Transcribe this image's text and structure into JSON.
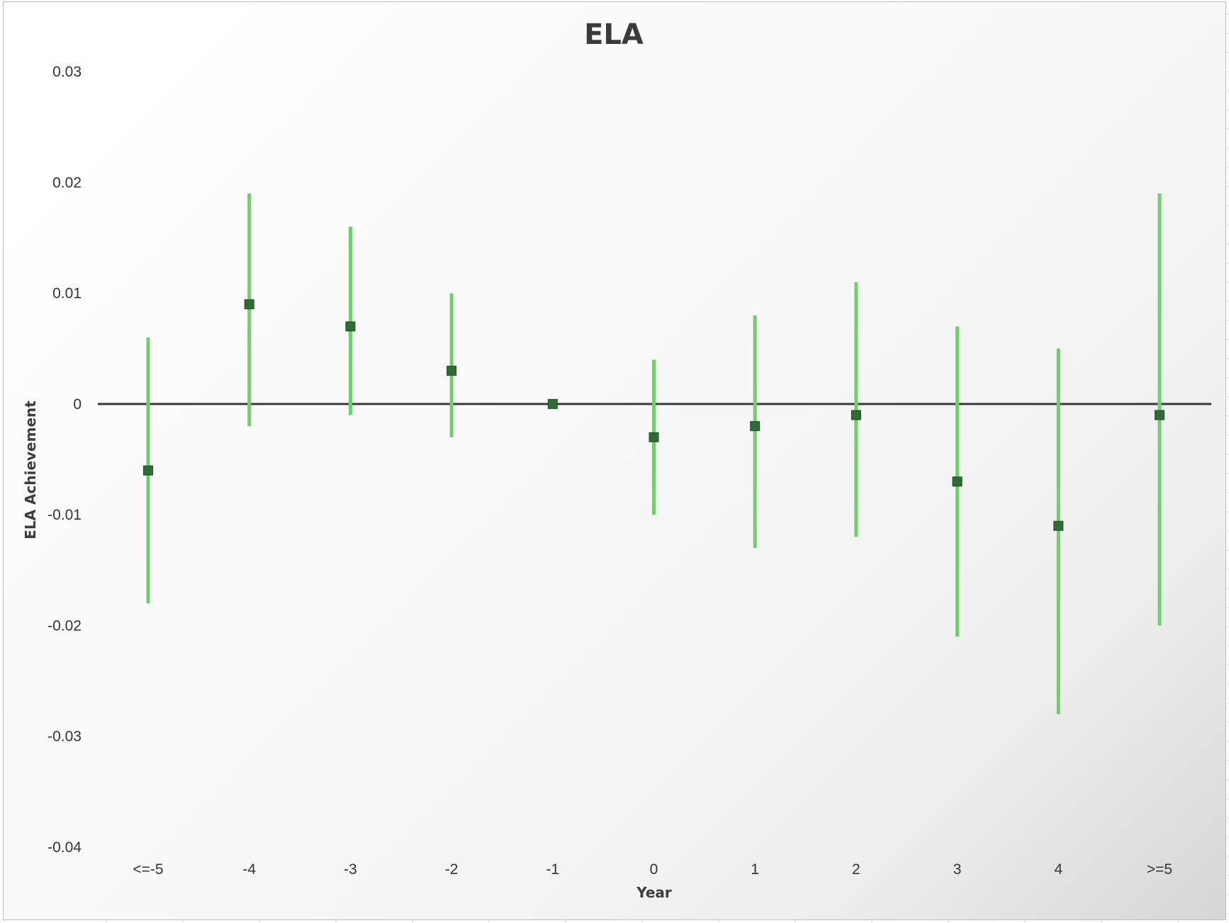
{
  "chart_data": {
    "type": "scatter",
    "title": "ELA",
    "xlabel": "Year",
    "ylabel": "ELA Achievement",
    "categories": [
      "<=-5",
      "-4",
      "-3",
      "-2",
      "-1",
      "0",
      "1",
      "2",
      "3",
      "4",
      ">=5"
    ],
    "series": [
      {
        "values": [
          -0.006,
          0.009,
          0.007,
          0.003,
          0.0,
          -0.003,
          -0.002,
          -0.001,
          -0.007,
          -0.011,
          -0.001
        ],
        "error_low": [
          -0.018,
          -0.002,
          -0.001,
          -0.003,
          0.0,
          -0.01,
          -0.013,
          -0.012,
          -0.021,
          -0.028,
          -0.02
        ],
        "error_high": [
          0.006,
          0.019,
          0.016,
          0.01,
          0.0,
          0.004,
          0.008,
          0.011,
          0.007,
          0.005,
          0.019
        ]
      }
    ],
    "ylim": [
      -0.04,
      0.03
    ],
    "yticks": [
      "0.03",
      "0.02",
      "0.01",
      "0",
      "-0.01",
      "-0.02",
      "-0.03",
      "-0.04"
    ],
    "grid": false,
    "legend": "none",
    "colors": {
      "marker": "#2f6b35",
      "error_bar": "#6fcf6b",
      "zero_line": "#3a3a3a"
    }
  }
}
